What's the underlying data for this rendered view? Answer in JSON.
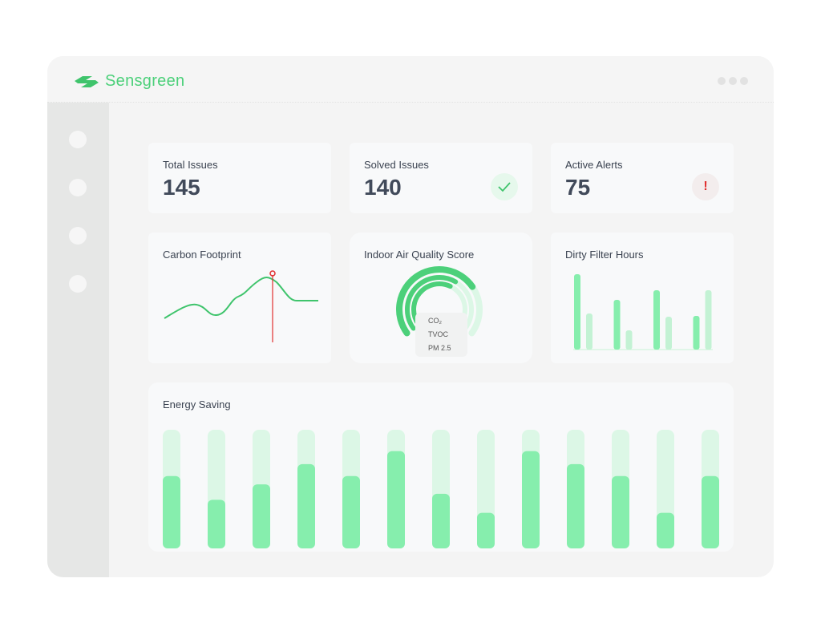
{
  "app": {
    "name": "Sensgreen"
  },
  "stats": [
    {
      "label": "Total Issues",
      "value": "145"
    },
    {
      "label": "Solved Issues",
      "value": "140",
      "icon": "check-icon"
    },
    {
      "label": "Active Alerts",
      "value": "75",
      "icon": "exclamation-icon"
    }
  ],
  "carbon": {
    "title": "Carbon Footprint"
  },
  "iaq": {
    "title": "Indoor Air Quality Score",
    "legend": [
      "CO₂",
      "TVOC",
      "PM 2.5"
    ],
    "scores": [
      0.72,
      0.62,
      0.6
    ]
  },
  "filter": {
    "title": "Dirty Filter Hours",
    "primary": [
      94,
      62,
      74,
      42
    ],
    "secondary": [
      45,
      24,
      41,
      74
    ]
  },
  "energy": {
    "title": "Energy Saving",
    "values": [
      61,
      41,
      54,
      71,
      61,
      82,
      46,
      30,
      82,
      71,
      61,
      30,
      61
    ]
  },
  "colors": {
    "accent": "#4cd07a",
    "bar": "#86eead",
    "barLight": "#dcf7e6",
    "alert": "#e03030"
  }
}
